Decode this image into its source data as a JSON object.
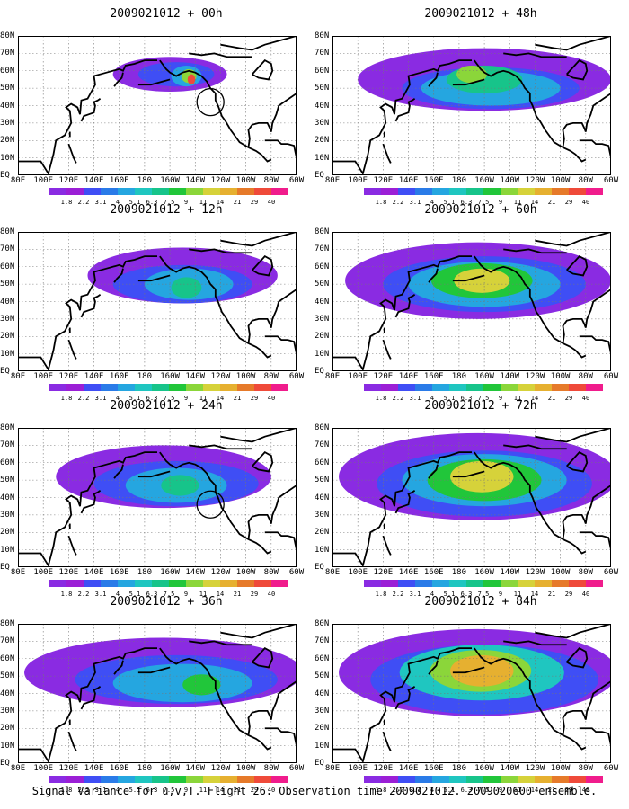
{
  "caption": "Signal Variance for u,v,T. Flight 26. Observation time 2009021012. 2009020600 ensemble.",
  "lon_ticks": [
    "80E",
    "100E",
    "120E",
    "140E",
    "160E",
    "180",
    "160W",
    "140W",
    "120W",
    "100W",
    "80W",
    "60W"
  ],
  "lat_ticks": [
    "80N",
    "70N",
    "60N",
    "50N",
    "40N",
    "30N",
    "20N",
    "10N",
    "EQ"
  ],
  "colorbar": {
    "levels": [
      "1.8",
      "2.2",
      "3.1",
      "4",
      "5.1",
      "6.3",
      "7.5",
      "9",
      "11",
      "14",
      "21",
      "29",
      "40"
    ],
    "colors": [
      "#8a2be2",
      "#9b1fd6",
      "#3f4ef5",
      "#2a7be8",
      "#25a6e0",
      "#1fc6c0",
      "#17c48a",
      "#21c63a",
      "#8bd63a",
      "#d6d23a",
      "#e6b030",
      "#e67a2a",
      "#ef4a3a",
      "#f01c8c"
    ]
  },
  "panels": [
    {
      "title": "2009021012 + 00h"
    },
    {
      "title": "2009021012 + 48h"
    },
    {
      "title": "2009021012 + 12h"
    },
    {
      "title": "2009021012 + 60h"
    },
    {
      "title": "2009021012 + 24h"
    },
    {
      "title": "2009021012 + 72h"
    },
    {
      "title": "2009021012 + 36h"
    },
    {
      "title": "2009021012 + 84h"
    }
  ]
}
